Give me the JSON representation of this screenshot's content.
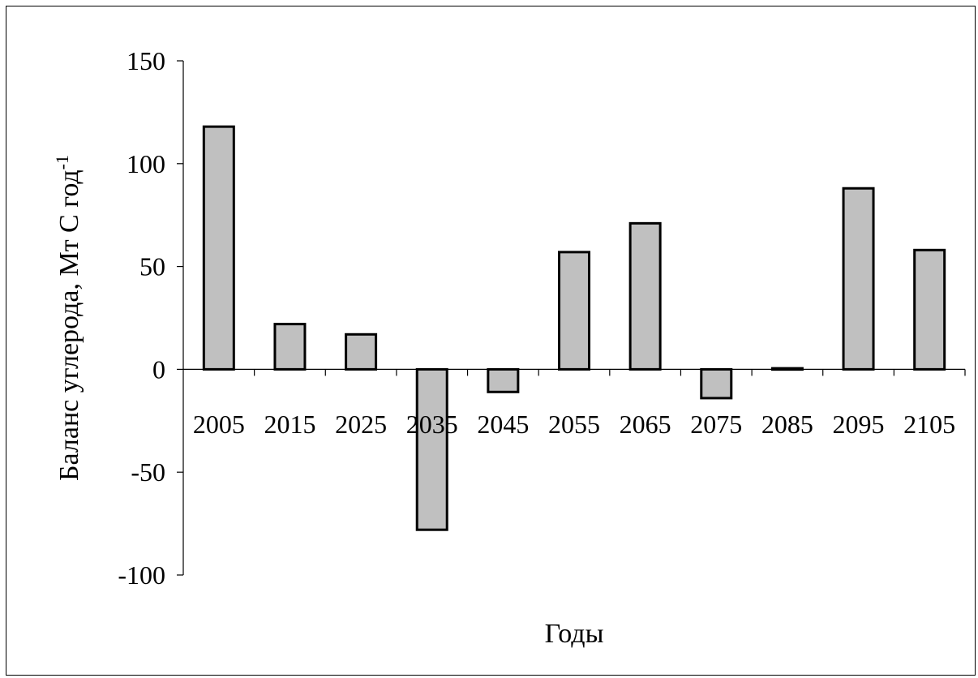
{
  "chart_data": {
    "type": "bar",
    "categories": [
      "2005",
      "2015",
      "2025",
      "2035",
      "2045",
      "2055",
      "2065",
      "2075",
      "2085",
      "2095",
      "2105"
    ],
    "values": [
      118,
      22,
      17,
      -78,
      -11,
      57,
      71,
      -14,
      0.5,
      88,
      58
    ],
    "xlabel": "Годы",
    "ylabel": {
      "text": "Баланс углерода, Мт С год",
      "superscript": "-1"
    },
    "ylim": [
      -100,
      150
    ],
    "yticks": [
      150,
      100,
      50,
      0,
      -50,
      -100
    ],
    "ytick_labels": [
      "150",
      "100",
      "50",
      "0",
      "-50",
      "-100"
    ],
    "grid": false,
    "legend": "none",
    "colors": {
      "bar_fill": "#c0c0c0",
      "bar_stroke": "#000000",
      "axis": "#000000",
      "background": "#ffffff"
    }
  }
}
